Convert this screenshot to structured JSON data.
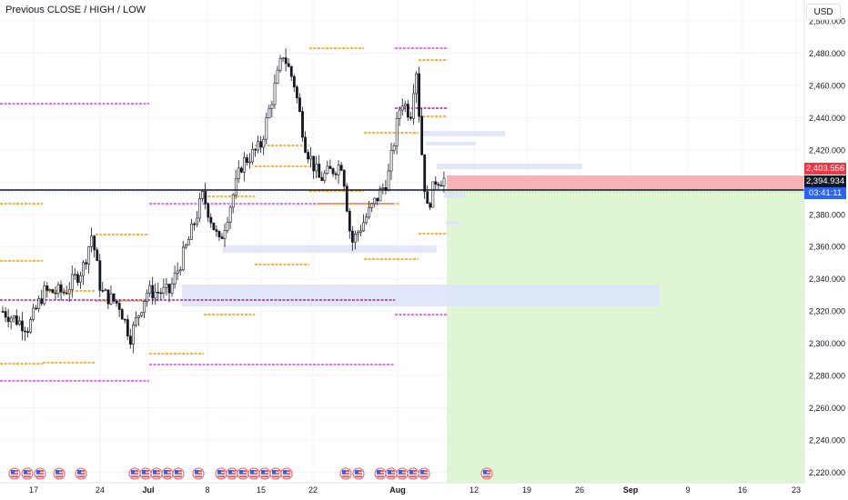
{
  "indicator_label": "Previous CLOSE / HIGH / LOW",
  "currency_button": "USD",
  "price_axis": {
    "ticks": [
      "2,500.000",
      "2,480.000",
      "2,460.000",
      "2,440.000",
      "2,420.000",
      "2,400.000",
      "2,380.000",
      "2,360.000",
      "2,340.000",
      "2,320.000",
      "2,300.000",
      "2,280.000",
      "2,260.000",
      "2,240.000",
      "2,220.000"
    ]
  },
  "time_axis": {
    "ticks": [
      "17",
      "24",
      "Jul",
      "8",
      "15",
      "22",
      "Aug",
      "12",
      "19",
      "26",
      "Sep",
      "9",
      "16",
      "23"
    ]
  },
  "badges": {
    "stop_price": "2,403.556",
    "current_price": "2,394.934",
    "countdown": "03:41:11"
  },
  "colors": {
    "bull_candle": "#ffffff",
    "bear_candle": "#131722",
    "prev_close_line": "#ff9800",
    "prev_high_low_line": "#e040fb",
    "weekly_line": "#9c27b0",
    "stop_zone": "#f7b3b6",
    "target_zone": "#dff5d3",
    "fvg_zone": "#dde3fb",
    "stop_badge": "#f23645",
    "price_badge": "#131722",
    "countdown_badge": "#2962ff"
  },
  "event_marker_icon": "us-flag-icon"
}
